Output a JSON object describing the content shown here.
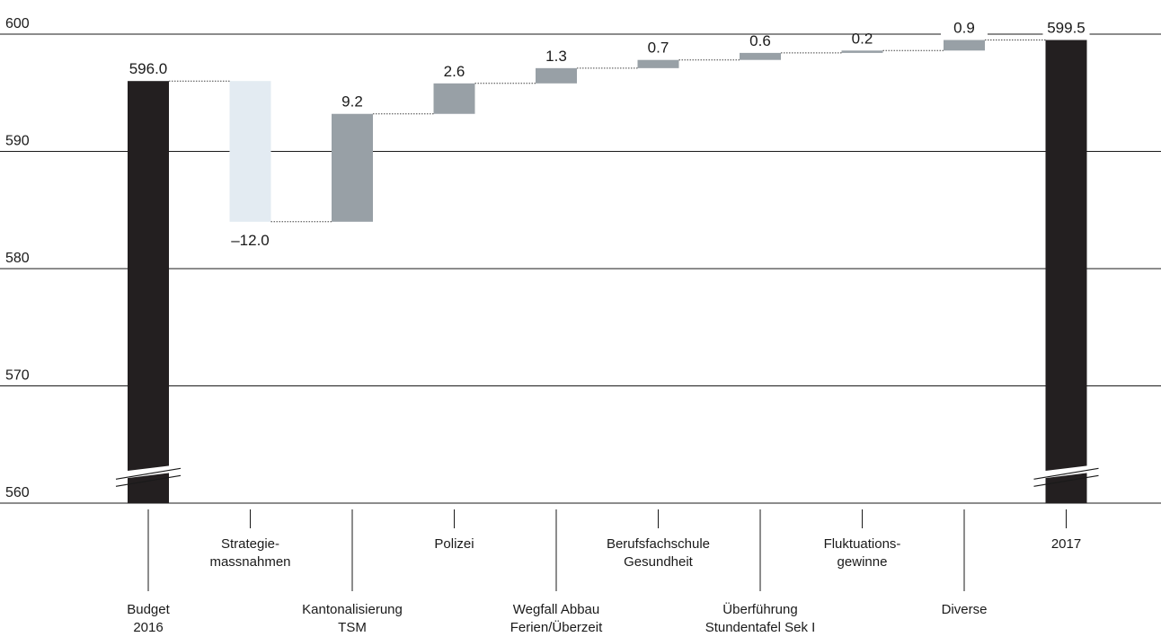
{
  "chart_data": {
    "type": "waterfall",
    "title": "",
    "xlabel": "",
    "ylabel": "",
    "ylim": [
      560,
      600
    ],
    "yticks": [
      "600",
      "590",
      "580",
      "570",
      "560"
    ],
    "axis_break": true,
    "colors": {
      "total": "#231f20",
      "negative": "#e3ebf2",
      "positive": "#98a0a6",
      "axis": "#1a1a1a",
      "connector": "#444444"
    },
    "bars": [
      {
        "category": [
          "Budget",
          "2016"
        ],
        "kind": "total",
        "start": 560,
        "end": 596.0,
        "label": "596.0",
        "label_row": "bottom"
      },
      {
        "category": [
          "Strategie-",
          "massnahmen"
        ],
        "kind": "delta",
        "start": 596.0,
        "end": 584.0,
        "label": "–12.0",
        "label_row": "top"
      },
      {
        "category": [
          "Kantonalisierung",
          "TSM"
        ],
        "kind": "delta",
        "start": 584.0,
        "end": 593.2,
        "label": "9.2",
        "label_row": "bottom"
      },
      {
        "category": [
          "Polizei"
        ],
        "kind": "delta",
        "start": 593.2,
        "end": 595.8,
        "label": "2.6",
        "label_row": "top"
      },
      {
        "category": [
          "Wegfall Abbau",
          "Ferien/Überzeit"
        ],
        "kind": "delta",
        "start": 595.8,
        "end": 597.1,
        "label": "1.3",
        "label_row": "bottom"
      },
      {
        "category": [
          "Berufsfachschule",
          "Gesundheit"
        ],
        "kind": "delta",
        "start": 597.1,
        "end": 597.8,
        "label": "0.7",
        "label_row": "top"
      },
      {
        "category": [
          "Überführung",
          "Stundentafel Sek I"
        ],
        "kind": "delta",
        "start": 597.8,
        "end": 598.4,
        "label": "0.6",
        "label_row": "bottom"
      },
      {
        "category": [
          "Fluktuations-",
          "gewinne"
        ],
        "kind": "delta",
        "start": 598.4,
        "end": 598.6,
        "label": "0.2",
        "label_row": "top"
      },
      {
        "category": [
          "Diverse"
        ],
        "kind": "delta",
        "start": 598.6,
        "end": 599.5,
        "label": "0.9",
        "label_row": "bottom"
      },
      {
        "category": [
          "2017"
        ],
        "kind": "total",
        "start": 560,
        "end": 599.5,
        "label": "599.5",
        "label_row": "top"
      }
    ]
  }
}
